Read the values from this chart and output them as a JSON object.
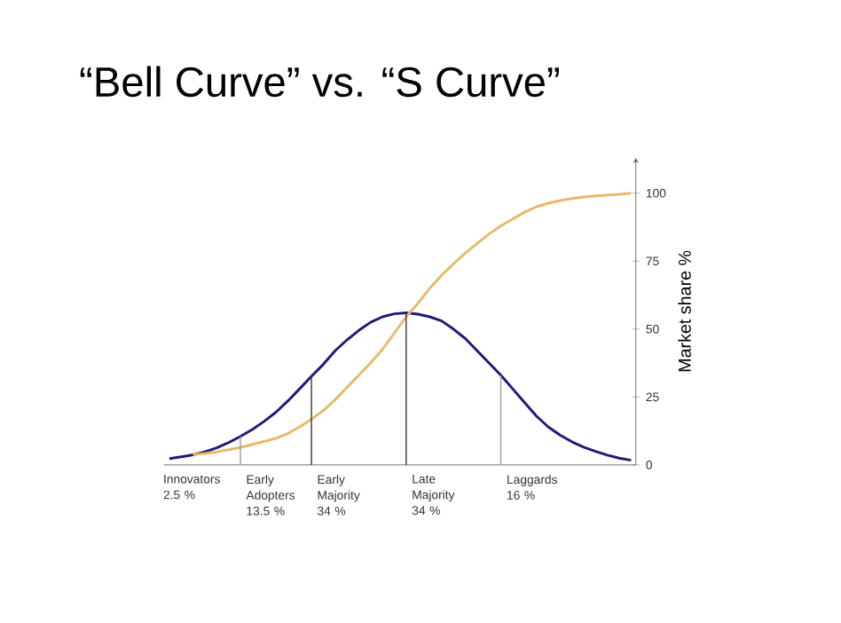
{
  "chart_data": {
    "type": "line",
    "title": "“Bell  Curve” vs. “S Curve”",
    "ylabel": "Market share %",
    "categories": [
      null,
      null,
      "Innovators 2.5 %",
      null,
      null,
      null,
      null,
      null,
      null,
      "Early Adopters 13.5 %",
      null,
      null,
      null,
      null,
      null,
      "Early Majority 34 %",
      null,
      null,
      null,
      null,
      null,
      null,
      null,
      "Late Majority 34 %",
      null,
      null,
      null,
      null,
      null,
      null,
      null,
      "Laggards 16 %",
      null,
      null,
      null,
      null,
      null,
      null,
      null,
      null
    ],
    "series": [
      {
        "color": "#1f1a7a",
        "values": [
          2.3,
          3,
          3.7,
          4.8,
          6.3,
          8.2,
          10.5,
          13,
          16,
          19.4,
          23.5,
          28,
          32.6,
          37,
          42,
          46,
          49.5,
          52.5,
          54.5,
          55.6,
          56,
          55.5,
          54.5,
          53,
          50,
          46.5,
          42,
          37.5,
          33,
          28,
          23,
          18,
          14,
          11,
          8.5,
          6.5,
          5,
          3.6,
          2.5,
          1.7
        ]
      },
      {
        "color": "#e8b96a",
        "values": [
          null,
          null,
          3.8,
          4.2,
          4.8,
          5.6,
          6.4,
          7.5,
          8.6,
          9.8,
          11.5,
          14,
          16.8,
          20,
          24,
          28.5,
          33,
          37.5,
          42.5,
          48.5,
          54.5,
          59.5,
          65,
          69.8,
          74,
          78,
          81.5,
          85,
          88,
          90.5,
          93,
          95,
          96.3,
          97.3,
          98,
          98.6,
          99,
          99.3,
          99.6,
          100
        ]
      }
    ],
    "ylim": [
      0,
      113
    ],
    "yticks": [
      0,
      25,
      50,
      75,
      100
    ],
    "marker": "none",
    "line_style": "solid",
    "grid": false,
    "legend": false
  }
}
